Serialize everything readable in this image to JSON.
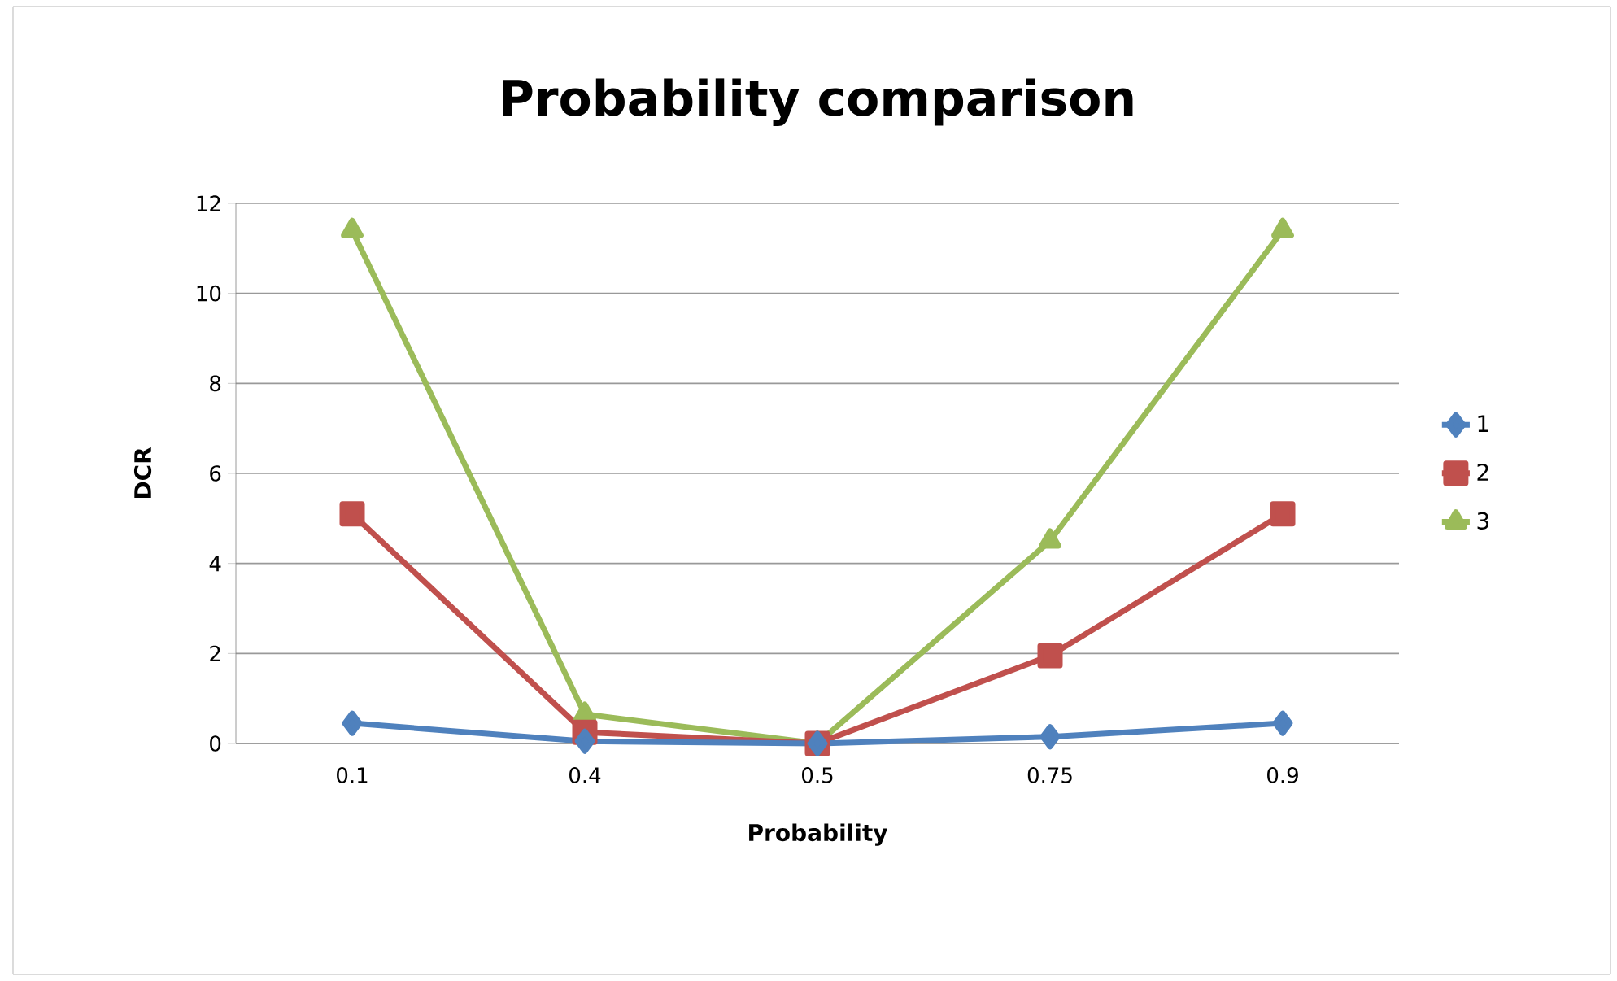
{
  "chart_data": {
    "type": "line",
    "title": "Probability comparison",
    "xlabel": "Probability",
    "ylabel": "DCR",
    "categories": [
      "0.1",
      "0.4",
      "0.5",
      "0.75",
      "0.9"
    ],
    "series": [
      {
        "name": "1",
        "color": "#4f81bd",
        "marker": "diamond",
        "values": [
          0.45,
          0.05,
          0,
          0.15,
          0.45
        ]
      },
      {
        "name": "2",
        "color": "#c0504d",
        "marker": "square",
        "values": [
          5.1,
          0.25,
          0,
          1.95,
          5.1
        ]
      },
      {
        "name": "3",
        "color": "#9bbb59",
        "marker": "triangle",
        "values": [
          11.4,
          0.65,
          0,
          4.5,
          11.4
        ]
      }
    ],
    "ylim": [
      0,
      12
    ],
    "yticks": [
      0,
      2,
      4,
      6,
      8,
      10,
      12
    ],
    "grid": "y",
    "legend": "right"
  }
}
